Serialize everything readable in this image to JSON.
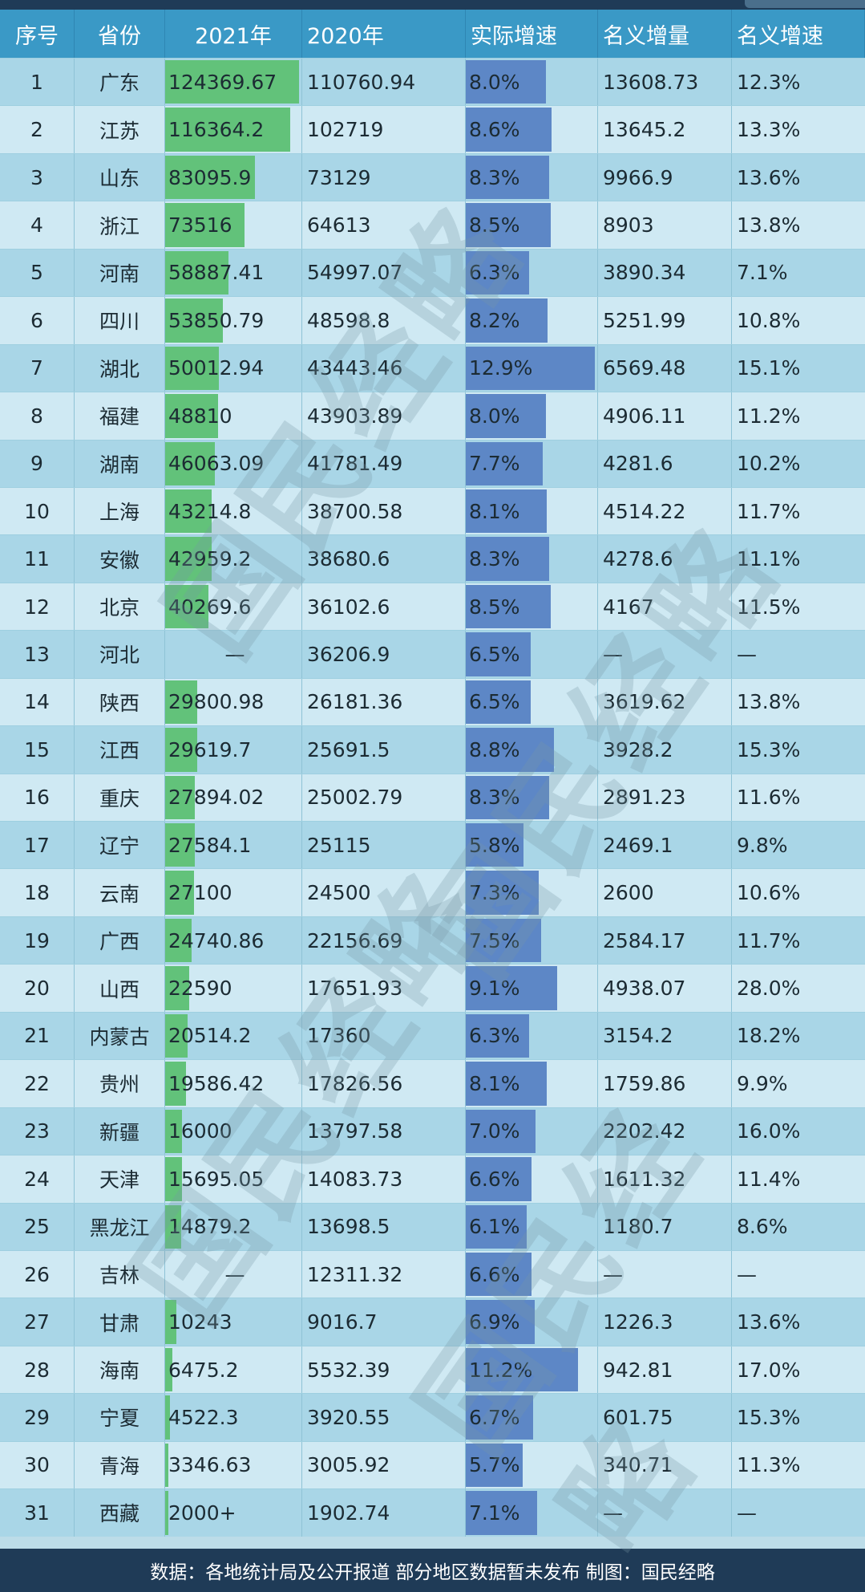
{
  "headers": [
    "序号",
    "省份",
    "2021年",
    "2020年",
    "实际增速",
    "名义增量",
    "名义增速"
  ],
  "rows": [
    {
      "no": "1",
      "prov": "广东",
      "y2021": "124369.67",
      "y2020": "110760.94",
      "real": "8.0%",
      "nom_inc": "13608.73",
      "nom_rate": "12.3%"
    },
    {
      "no": "2",
      "prov": "江苏",
      "y2021": "116364.2",
      "y2020": "102719",
      "real": "8.6%",
      "nom_inc": "13645.2",
      "nom_rate": "13.3%"
    },
    {
      "no": "3",
      "prov": "山东",
      "y2021": "83095.9",
      "y2020": "73129",
      "real": "8.3%",
      "nom_inc": "9966.9",
      "nom_rate": "13.6%"
    },
    {
      "no": "4",
      "prov": "浙江",
      "y2021": "73516",
      "y2020": "64613",
      "real": "8.5%",
      "nom_inc": "8903",
      "nom_rate": "13.8%"
    },
    {
      "no": "5",
      "prov": "河南",
      "y2021": "58887.41",
      "y2020": "54997.07",
      "real": "6.3%",
      "nom_inc": "3890.34",
      "nom_rate": "7.1%"
    },
    {
      "no": "6",
      "prov": "四川",
      "y2021": "53850.79",
      "y2020": "48598.8",
      "real": "8.2%",
      "nom_inc": "5251.99",
      "nom_rate": "10.8%"
    },
    {
      "no": "7",
      "prov": "湖北",
      "y2021": "50012.94",
      "y2020": "43443.46",
      "real": "12.9%",
      "nom_inc": "6569.48",
      "nom_rate": "15.1%"
    },
    {
      "no": "8",
      "prov": "福建",
      "y2021": "48810",
      "y2020": "43903.89",
      "real": "8.0%",
      "nom_inc": "4906.11",
      "nom_rate": "11.2%"
    },
    {
      "no": "9",
      "prov": "湖南",
      "y2021": "46063.09",
      "y2020": "41781.49",
      "real": "7.7%",
      "nom_inc": "4281.6",
      "nom_rate": "10.2%"
    },
    {
      "no": "10",
      "prov": "上海",
      "y2021": "43214.8",
      "y2020": "38700.58",
      "real": "8.1%",
      "nom_inc": "4514.22",
      "nom_rate": "11.7%"
    },
    {
      "no": "11",
      "prov": "安徽",
      "y2021": "42959.2",
      "y2020": "38680.6",
      "real": "8.3%",
      "nom_inc": "4278.6",
      "nom_rate": "11.1%"
    },
    {
      "no": "12",
      "prov": "北京",
      "y2021": "40269.6",
      "y2020": "36102.6",
      "real": "8.5%",
      "nom_inc": "4167",
      "nom_rate": "11.5%"
    },
    {
      "no": "13",
      "prov": "河北",
      "y2021": "—",
      "y2020": "36206.9",
      "real": "6.5%",
      "nom_inc": "—",
      "nom_rate": "—"
    },
    {
      "no": "14",
      "prov": "陕西",
      "y2021": "29800.98",
      "y2020": "26181.36",
      "real": "6.5%",
      "nom_inc": "3619.62",
      "nom_rate": "13.8%"
    },
    {
      "no": "15",
      "prov": "江西",
      "y2021": "29619.7",
      "y2020": "25691.5",
      "real": "8.8%",
      "nom_inc": "3928.2",
      "nom_rate": "15.3%"
    },
    {
      "no": "16",
      "prov": "重庆",
      "y2021": "27894.02",
      "y2020": "25002.79",
      "real": "8.3%",
      "nom_inc": "2891.23",
      "nom_rate": "11.6%"
    },
    {
      "no": "17",
      "prov": "辽宁",
      "y2021": "27584.1",
      "y2020": "25115",
      "real": "5.8%",
      "nom_inc": "2469.1",
      "nom_rate": "9.8%"
    },
    {
      "no": "18",
      "prov": "云南",
      "y2021": "27100",
      "y2020": "24500",
      "real": "7.3%",
      "nom_inc": "2600",
      "nom_rate": "10.6%"
    },
    {
      "no": "19",
      "prov": "广西",
      "y2021": "24740.86",
      "y2020": "22156.69",
      "real": "7.5%",
      "nom_inc": "2584.17",
      "nom_rate": "11.7%"
    },
    {
      "no": "20",
      "prov": "山西",
      "y2021": "22590",
      "y2020": "17651.93",
      "real": "9.1%",
      "nom_inc": "4938.07",
      "nom_rate": "28.0%"
    },
    {
      "no": "21",
      "prov": "内蒙古",
      "y2021": "20514.2",
      "y2020": "17360",
      "real": "6.3%",
      "nom_inc": "3154.2",
      "nom_rate": "18.2%"
    },
    {
      "no": "22",
      "prov": "贵州",
      "y2021": "19586.42",
      "y2020": "17826.56",
      "real": "8.1%",
      "nom_inc": "1759.86",
      "nom_rate": "9.9%"
    },
    {
      "no": "23",
      "prov": "新疆",
      "y2021": "16000",
      "y2020": "13797.58",
      "real": "7.0%",
      "nom_inc": "2202.42",
      "nom_rate": "16.0%"
    },
    {
      "no": "24",
      "prov": "天津",
      "y2021": "15695.05",
      "y2020": "14083.73",
      "real": "6.6%",
      "nom_inc": "1611.32",
      "nom_rate": "11.4%"
    },
    {
      "no": "25",
      "prov": "黑龙江",
      "y2021": "14879.2",
      "y2020": "13698.5",
      "real": "6.1%",
      "nom_inc": "1180.7",
      "nom_rate": "8.6%"
    },
    {
      "no": "26",
      "prov": "吉林",
      "y2021": "—",
      "y2020": "12311.32",
      "real": "6.6%",
      "nom_inc": "—",
      "nom_rate": "—"
    },
    {
      "no": "27",
      "prov": "甘肃",
      "y2021": "10243",
      "y2020": "9016.7",
      "real": "6.9%",
      "nom_inc": "1226.3",
      "nom_rate": "13.6%"
    },
    {
      "no": "28",
      "prov": "海南",
      "y2021": "6475.2",
      "y2020": "5532.39",
      "real": "11.2%",
      "nom_inc": "942.81",
      "nom_rate": "17.0%"
    },
    {
      "no": "29",
      "prov": "宁夏",
      "y2021": "4522.3",
      "y2020": "3920.55",
      "real": "6.7%",
      "nom_inc": "601.75",
      "nom_rate": "15.3%"
    },
    {
      "no": "30",
      "prov": "青海",
      "y2021": "3346.63",
      "y2020": "3005.92",
      "real": "5.7%",
      "nom_inc": "340.71",
      "nom_rate": "11.3%"
    },
    {
      "no": "31",
      "prov": "西藏",
      "y2021": "2000+",
      "y2020": "1902.74",
      "real": "7.1%",
      "nom_inc": "—",
      "nom_rate": "—"
    }
  ],
  "footer": "数据：各地统计局及公开报道 部分地区数据暂未发布 制图：国民经略",
  "watermark": "国民经略",
  "colors": {
    "header_bg": "#3a99c6",
    "bar_2021": "#62c27a",
    "bar_real": "#5d87c6",
    "footer_bg": "#1f3b57"
  }
}
